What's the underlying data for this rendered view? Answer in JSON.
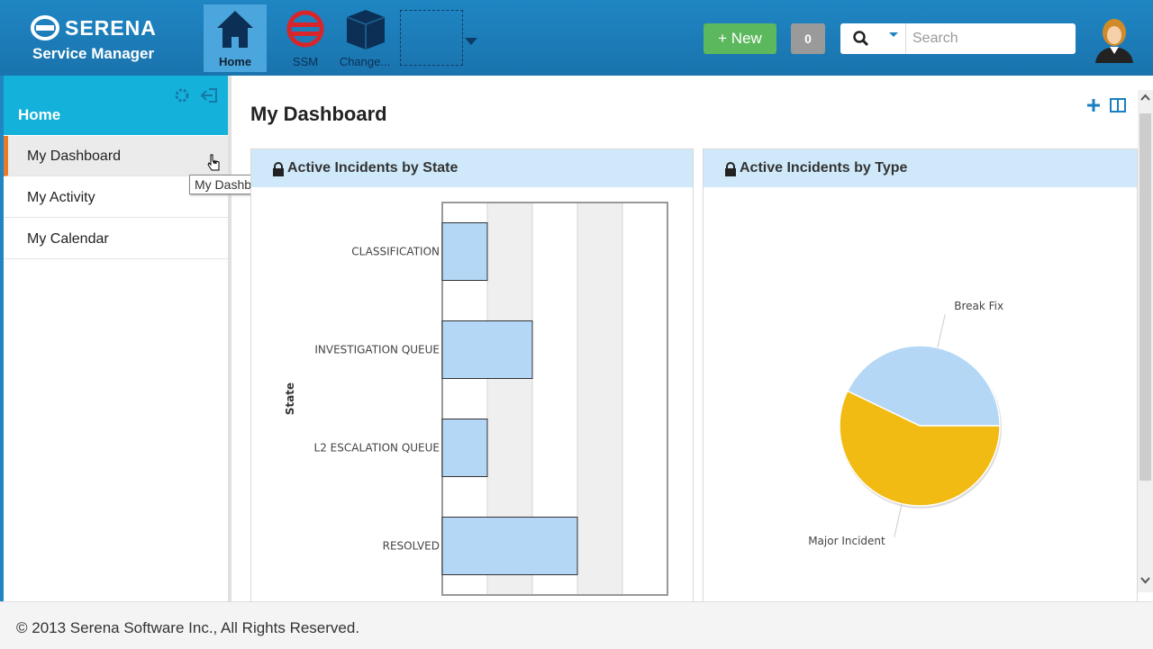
{
  "header": {
    "brand": "SERENA",
    "product": "Service Manager",
    "tabs": [
      "Home",
      "SSM",
      "Change..."
    ],
    "new_button": "+ New",
    "count": 0,
    "search_placeholder": "Search"
  },
  "sidebar": {
    "title": "Home",
    "items": [
      "My Dashboard",
      "My Activity",
      "My Calendar"
    ],
    "tooltip": "My Dashboard"
  },
  "page_title": "My Dashboard",
  "chart_data": [
    {
      "type": "bar",
      "orientation": "horizontal",
      "title": "Active Incidents by State",
      "y_label": "State",
      "categories": [
        "CLASSIFICATION",
        "INVESTIGATION QUEUE",
        "L2 ESCALATION QUEUE",
        "RESOLVED"
      ],
      "values": [
        1,
        2,
        1,
        3
      ],
      "color": "#b3d7f5",
      "xlim": [
        0,
        5
      ],
      "xticks": [
        0,
        1,
        2,
        3,
        4,
        5
      ]
    },
    {
      "type": "pie",
      "title": "Active Incidents by Type",
      "categories": [
        "Break Fix",
        "Major Incident"
      ],
      "values": [
        3,
        4
      ],
      "colors": [
        "#b3d7f5",
        "#f2bb13"
      ]
    }
  ],
  "footer": "© 2013 Serena Software Inc., All Rights Reserved."
}
